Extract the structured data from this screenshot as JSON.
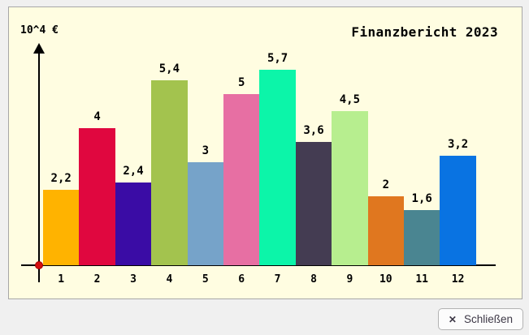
{
  "window": {
    "bg_color": "#f0f0f0"
  },
  "chart": {
    "title": "Finanzbericht 2023",
    "unit_label": "10^4 €",
    "panel_bg": "#fffde1",
    "panel_border": "#a7a7a7",
    "axis_color": "#000000",
    "origin_dot_color": "#d40f0f"
  },
  "chart_data": {
    "type": "bar",
    "title": "Finanzbericht 2023",
    "xlabel": "",
    "ylabel": "10^4 €",
    "categories": [
      "1",
      "2",
      "3",
      "4",
      "5",
      "6",
      "7",
      "8",
      "9",
      "10",
      "11",
      "12"
    ],
    "values": [
      2.2,
      4,
      2.4,
      5.4,
      3,
      5,
      5.7,
      3.6,
      4.5,
      2,
      1.6,
      3.2
    ],
    "value_labels": [
      "2,2",
      "4",
      "2,4",
      "5,4",
      "3",
      "5",
      "5,7",
      "3,6",
      "4,5",
      "2",
      "1,6",
      "3,2"
    ],
    "bar_colors": [
      "#ffb300",
      "#e0073f",
      "#3a0ca5",
      "#a3c34e",
      "#76a3c9",
      "#e76fa3",
      "#0cf5a9",
      "#443c52",
      "#b7ee8f",
      "#e0771f",
      "#4a8591",
      "#0973e2"
    ],
    "ylim": [
      0,
      6.6
    ],
    "grid": false,
    "legend": null,
    "annotations": "value labels above each bar, red dot marker at axis origin, arrow head on y-axis"
  },
  "dialog": {
    "close_button": {
      "label": "Schließen",
      "icon": "✕"
    }
  }
}
